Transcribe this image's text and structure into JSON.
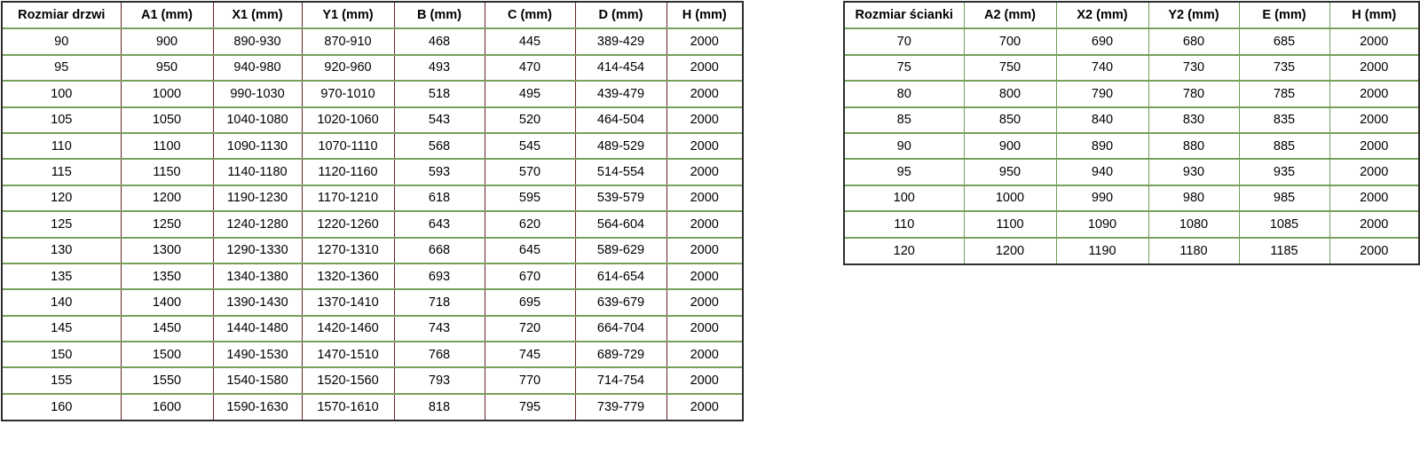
{
  "left_table": {
    "name": "door-size-table",
    "headers": [
      "Rozmiar drzwi",
      "A1 (mm)",
      "X1 (mm)",
      "Y1 (mm)",
      "B (mm)",
      "C (mm)",
      "D (mm)",
      "H (mm)"
    ],
    "rows": [
      [
        "90",
        "900",
        "890-930",
        "870-910",
        "468",
        "445",
        "389-429",
        "2000"
      ],
      [
        "95",
        "950",
        "940-980",
        "920-960",
        "493",
        "470",
        "414-454",
        "2000"
      ],
      [
        "100",
        "1000",
        "990-1030",
        "970-1010",
        "518",
        "495",
        "439-479",
        "2000"
      ],
      [
        "105",
        "1050",
        "1040-1080",
        "1020-1060",
        "543",
        "520",
        "464-504",
        "2000"
      ],
      [
        "110",
        "1100",
        "1090-1130",
        "1070-1110",
        "568",
        "545",
        "489-529",
        "2000"
      ],
      [
        "115",
        "1150",
        "1140-1180",
        "1120-1160",
        "593",
        "570",
        "514-554",
        "2000"
      ],
      [
        "120",
        "1200",
        "1190-1230",
        "1170-1210",
        "618",
        "595",
        "539-579",
        "2000"
      ],
      [
        "125",
        "1250",
        "1240-1280",
        "1220-1260",
        "643",
        "620",
        "564-604",
        "2000"
      ],
      [
        "130",
        "1300",
        "1290-1330",
        "1270-1310",
        "668",
        "645",
        "589-629",
        "2000"
      ],
      [
        "135",
        "1350",
        "1340-1380",
        "1320-1360",
        "693",
        "670",
        "614-654",
        "2000"
      ],
      [
        "140",
        "1400",
        "1390-1430",
        "1370-1410",
        "718",
        "695",
        "639-679",
        "2000"
      ],
      [
        "145",
        "1450",
        "1440-1480",
        "1420-1460",
        "743",
        "720",
        "664-704",
        "2000"
      ],
      [
        "150",
        "1500",
        "1490-1530",
        "1470-1510",
        "768",
        "745",
        "689-729",
        "2000"
      ],
      [
        "155",
        "1550",
        "1540-1580",
        "1520-1560",
        "793",
        "770",
        "714-754",
        "2000"
      ],
      [
        "160",
        "1600",
        "1590-1630",
        "1570-1610",
        "818",
        "795",
        "739-779",
        "2000"
      ]
    ]
  },
  "right_table": {
    "name": "wall-panel-size-table",
    "headers": [
      "Rozmiar ścianki",
      "A2 (mm)",
      "X2 (mm)",
      "Y2 (mm)",
      "E (mm)",
      "H (mm)"
    ],
    "rows": [
      [
        "70",
        "700",
        "690",
        "680",
        "685",
        "2000"
      ],
      [
        "75",
        "750",
        "740",
        "730",
        "735",
        "2000"
      ],
      [
        "80",
        "800",
        "790",
        "780",
        "785",
        "2000"
      ],
      [
        "85",
        "850",
        "840",
        "830",
        "835",
        "2000"
      ],
      [
        "90",
        "900",
        "890",
        "880",
        "885",
        "2000"
      ],
      [
        "95",
        "950",
        "940",
        "930",
        "935",
        "2000"
      ],
      [
        "100",
        "1000",
        "990",
        "980",
        "985",
        "2000"
      ],
      [
        "110",
        "1100",
        "1090",
        "1080",
        "1085",
        "2000"
      ],
      [
        "120",
        "1200",
        "1190",
        "1180",
        "1185",
        "2000"
      ]
    ]
  },
  "colors": {
    "outer_border": "#2e2e2e",
    "horizontal_border": "#77a05a",
    "left_table_vertical_border": "#632423",
    "right_table_vertical_border": "#6f9e57",
    "text": "#000000",
    "background": "#ffffff"
  }
}
